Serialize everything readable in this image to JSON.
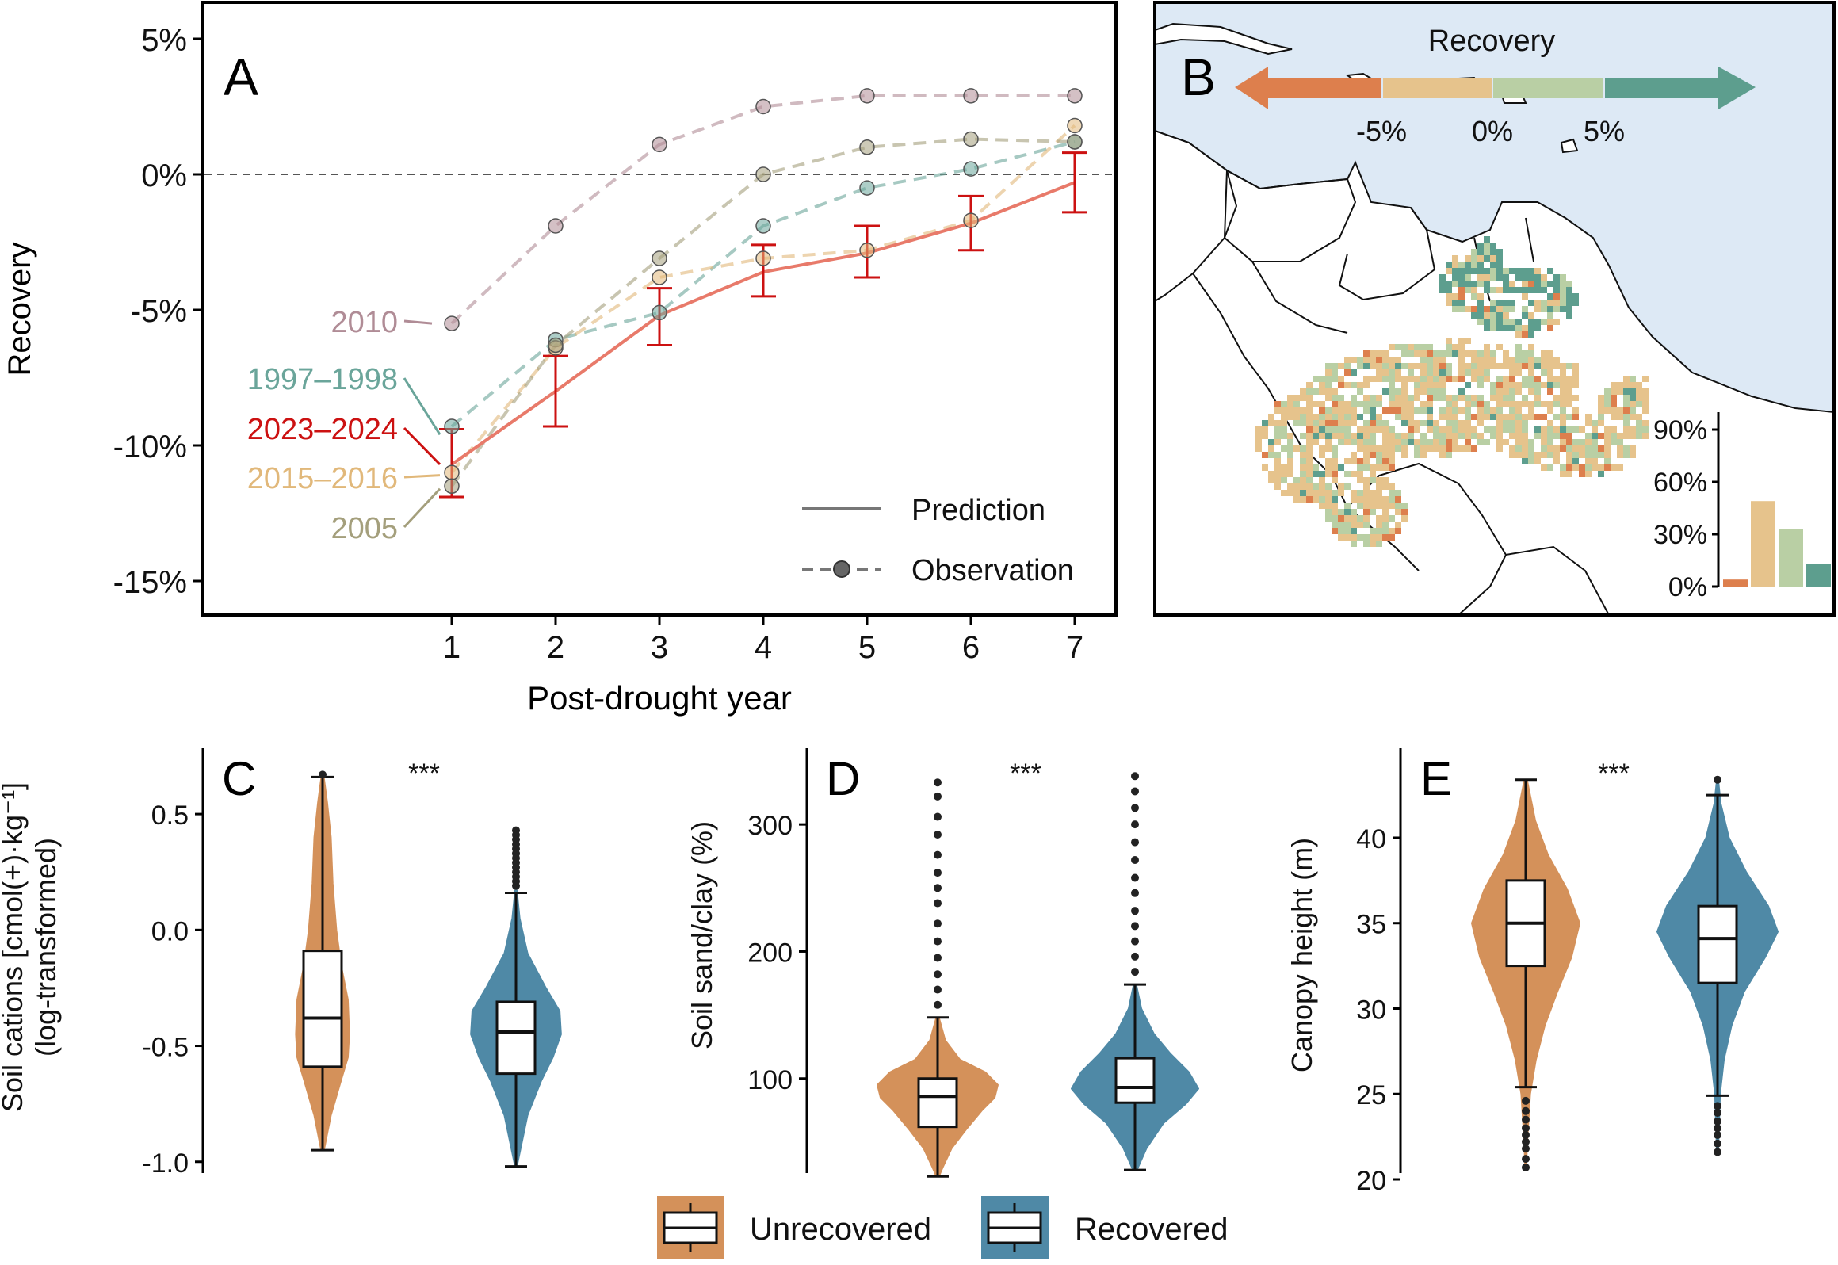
{
  "colors": {
    "y2010": "#b08c96",
    "y1997": "#6aa59a",
    "y2023": "#cc1111",
    "y2015": "#e1b87a",
    "y2005": "#a49f7c",
    "prediction": "#e87a6a",
    "unrecovered": "#d4915a",
    "recovered": "#4f89a6",
    "ocean": "#dde9f5",
    "rec_neg_strong": "#dd7f4d",
    "rec_neg": "#e6c38c",
    "rec_pos": "#b9cfa4",
    "rec_pos_strong": "#5d9e8e"
  },
  "chart_data": [
    {
      "panel": "A",
      "type": "line",
      "xlabel": "Post-drought year",
      "ylabel": "Recovery",
      "ylim": [
        -16.5,
        6.5
      ],
      "y_ticks": [
        5,
        0,
        -5,
        -10,
        -15
      ],
      "y_tick_labels": [
        "5%",
        "0%",
        "-5%",
        "-10%",
        "-15%"
      ],
      "x_ticks": [
        1,
        2,
        3,
        4,
        5,
        6,
        7
      ],
      "x_tick_labels": [
        "1",
        "2",
        "3",
        "4",
        "5",
        "6",
        "7"
      ],
      "reference_line": 0,
      "series": [
        {
          "name": "2010",
          "color_key": "y2010",
          "x": [
            1,
            2,
            3,
            4,
            5,
            6,
            7
          ],
          "y": [
            -5.5,
            -1.9,
            1.1,
            2.5,
            2.9,
            2.9,
            2.9
          ]
        },
        {
          "name": "1997–1998",
          "color_key": "y1997",
          "x": [
            1,
            2,
            3,
            4,
            5,
            6,
            7
          ],
          "y": [
            -9.3,
            -6.1,
            -5.1,
            -1.9,
            -0.5,
            0.2,
            1.2
          ]
        },
        {
          "name": "2015–2016",
          "color_key": "y2015",
          "x": [
            1,
            2,
            3,
            4,
            5,
            6,
            7
          ],
          "y": [
            -11.0,
            -6.4,
            -3.8,
            -3.1,
            -2.8,
            -1.7,
            1.8
          ]
        },
        {
          "name": "2005",
          "color_key": "y2005",
          "x": [
            1,
            2,
            3,
            4,
            5,
            6,
            7
          ],
          "y": [
            -11.5,
            -6.3,
            -3.1,
            0.0,
            1.0,
            1.3,
            1.2
          ]
        },
        {
          "name": "2023–2024",
          "color_key": "y2023",
          "kind": "prediction",
          "x": [
            1,
            2,
            3,
            4,
            5,
            6,
            7
          ],
          "y": [
            -10.7,
            -8.0,
            -5.2,
            -3.6,
            -2.9,
            -1.8,
            -0.3
          ],
          "err_low": [
            -11.9,
            -9.3,
            -6.3,
            -4.5,
            -3.8,
            -2.8,
            -1.4
          ],
          "err_high": [
            -9.4,
            -6.7,
            -4.2,
            -2.6,
            -1.9,
            -0.8,
            0.8
          ]
        }
      ],
      "label_order": [
        "2010",
        "1997–1998",
        "2023–2024",
        "2015–2016",
        "2005"
      ],
      "legend": [
        "Prediction",
        "Observation"
      ]
    },
    {
      "panel": "B",
      "type": "map",
      "colorbar_title": "Recovery",
      "colorbar_ticks": [
        "-5%",
        "0%",
        "5%"
      ],
      "colorbar_colors": [
        "rec_neg_strong",
        "rec_neg",
        "rec_pos",
        "rec_pos_strong"
      ],
      "inset": {
        "type": "bar",
        "y_ticks": [
          0,
          30,
          60,
          90
        ],
        "y_tick_labels": [
          "0%",
          "30%",
          "60%",
          "90%"
        ],
        "values": [
          4,
          49,
          33,
          13
        ],
        "color_keys": [
          "rec_neg_strong",
          "rec_neg",
          "rec_pos",
          "rec_pos_strong"
        ]
      }
    },
    {
      "panel": "C",
      "type": "violin",
      "ylabel": [
        "Soil cations [cmol(+)·kg⁻¹]",
        "(log-transformed)"
      ],
      "ylim": [
        -1.1,
        0.75
      ],
      "y_ticks": [
        0.5,
        0.0,
        -0.5,
        -1.0
      ],
      "y_tick_labels": [
        "0.5",
        "0.0",
        "-0.5",
        "-1.0"
      ],
      "significance": "***",
      "groups": [
        {
          "name": "Unrecovered",
          "color_key": "unrecovered",
          "min": -0.95,
          "q1": -0.59,
          "median": -0.38,
          "q3": -0.09,
          "max": 0.66,
          "outliers": [
            0.67
          ]
        },
        {
          "name": "Recovered",
          "color_key": "recovered",
          "min": -1.02,
          "q1": -0.62,
          "median": -0.44,
          "q3": -0.31,
          "max": 0.16,
          "outliers": [
            0.19,
            0.21,
            0.23,
            0.25,
            0.27,
            0.29,
            0.31,
            0.33,
            0.35,
            0.37,
            0.39,
            0.41,
            0.43
          ]
        }
      ]
    },
    {
      "panel": "D",
      "type": "violin",
      "ylabel": "Soil sand/clay (%)",
      "ylim": [
        20,
        350
      ],
      "y_ticks": [
        300,
        200,
        100
      ],
      "y_tick_labels": [
        "300",
        "200",
        "100"
      ],
      "significance": "***",
      "groups": [
        {
          "name": "Unrecovered",
          "color_key": "unrecovered",
          "min": 23,
          "q1": 62,
          "median": 86,
          "q3": 100,
          "max": 148,
          "outliers": [
            158,
            170,
            182,
            195,
            208,
            222,
            238,
            250,
            262,
            276,
            292,
            306,
            322,
            333
          ]
        },
        {
          "name": "Recovered",
          "color_key": "recovered",
          "min": 28,
          "q1": 81,
          "median": 93,
          "q3": 116,
          "max": 174,
          "outliers": [
            184,
            196,
            208,
            220,
            232,
            246,
            258,
            272,
            286,
            300,
            313,
            326,
            338
          ]
        }
      ]
    },
    {
      "panel": "E",
      "type": "violin",
      "ylabel": "Canopy height (m)",
      "ylim": [
        20,
        44.5
      ],
      "y_ticks": [
        40,
        35,
        30,
        25,
        20
      ],
      "y_tick_labels": [
        "40",
        "35",
        "30",
        "25",
        "20"
      ],
      "significance": "***",
      "groups": [
        {
          "name": "Unrecovered",
          "color_key": "unrecovered",
          "min": 25.4,
          "q1": 32.5,
          "median": 35.0,
          "q3": 37.5,
          "max": 43.4,
          "outliers": [
            24.6,
            24.0,
            23.5,
            23.0,
            22.6,
            22.2,
            21.8,
            21.2,
            20.7
          ]
        },
        {
          "name": "Recovered",
          "color_key": "recovered",
          "min": 24.9,
          "q1": 31.5,
          "median": 34.1,
          "q3": 36.0,
          "max": 42.5,
          "outliers": [
            24.3,
            23.9,
            23.4,
            23.0,
            22.6,
            22.1,
            21.6,
            43.4
          ]
        }
      ]
    }
  ],
  "panel_letters": [
    "A",
    "B",
    "C",
    "D",
    "E"
  ],
  "bottom_legend": [
    "Unrecovered",
    "Recovered"
  ]
}
